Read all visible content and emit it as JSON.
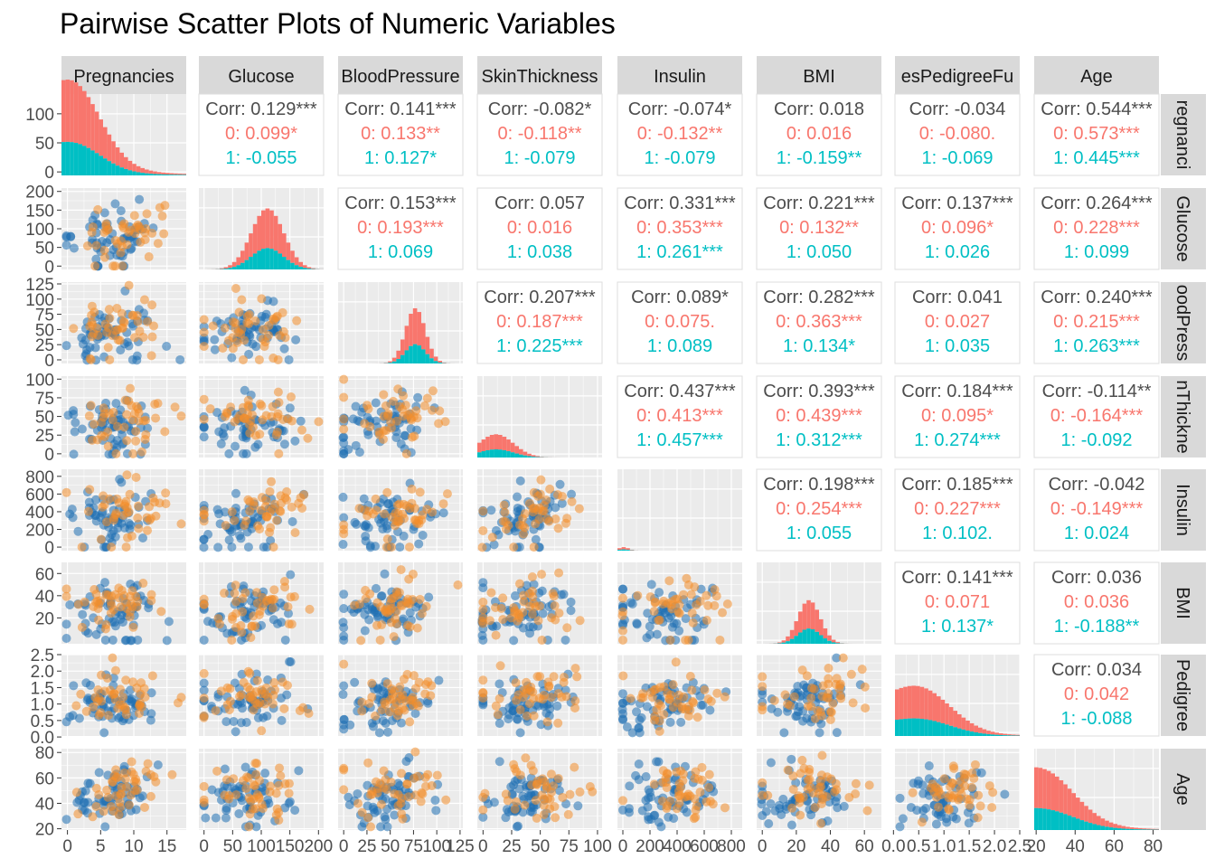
{
  "title": "Pairwise Scatter Plots of Numeric Variables",
  "chart_data": {
    "type": "scatter-matrix",
    "title": "Pairwise Scatter Plots of Numeric Variables",
    "variables": [
      "Pregnancies",
      "Glucose",
      "BloodPressure",
      "SkinThickness",
      "Insulin",
      "BMI",
      "DiabetesPedigreeFunction",
      "Age"
    ],
    "column_strip_labels": [
      "Pregnancies",
      "Glucose",
      "BloodPressure",
      "SkinThickness",
      "Insulin",
      "BMI",
      "esPedigreeFu",
      "Age"
    ],
    "row_strip_labels": [
      "regnanci",
      "Glucose",
      "oodPress",
      "nThickne",
      "Insulin",
      "BMI",
      "Pedigree",
      "Age"
    ],
    "groups": [
      {
        "name": "0",
        "hist_color": "#F8766D",
        "point_color": "#F28E2B"
      },
      {
        "name": "1",
        "hist_color": "#00BFC4",
        "point_color": "#1F6FB2"
      }
    ],
    "y_ticks": [
      [
        {
          "v": 0,
          "label": "0"
        },
        {
          "v": 50,
          "label": "50"
        },
        {
          "v": 100,
          "label": "100"
        }
      ],
      [
        {
          "v": 0,
          "label": "0"
        },
        {
          "v": 50,
          "label": "50"
        },
        {
          "v": 100,
          "label": "100"
        },
        {
          "v": 150,
          "label": "150"
        },
        {
          "v": 200,
          "label": "200"
        }
      ],
      [
        {
          "v": 0,
          "label": "0"
        },
        {
          "v": 25,
          "label": "25"
        },
        {
          "v": 50,
          "label": "50"
        },
        {
          "v": 75,
          "label": "75"
        },
        {
          "v": 100,
          "label": "100"
        },
        {
          "v": 125,
          "label": "125"
        }
      ],
      [
        {
          "v": 0,
          "label": "0"
        },
        {
          "v": 25,
          "label": "25"
        },
        {
          "v": 50,
          "label": "50"
        },
        {
          "v": 75,
          "label": "75"
        },
        {
          "v": 100,
          "label": "100"
        }
      ],
      [
        {
          "v": 0,
          "label": "0"
        },
        {
          "v": 200,
          "label": "200"
        },
        {
          "v": 400,
          "label": "400"
        },
        {
          "v": 600,
          "label": "600"
        },
        {
          "v": 800,
          "label": "800"
        }
      ],
      [
        {
          "v": 20,
          "label": "20"
        },
        {
          "v": 40,
          "label": "40"
        },
        {
          "v": 60,
          "label": "60"
        }
      ],
      [
        {
          "v": 0,
          "label": "0.0"
        },
        {
          "v": 0.5,
          "label": "0.5"
        },
        {
          "v": 1,
          "label": "1.0"
        },
        {
          "v": 1.5,
          "label": "1.5"
        },
        {
          "v": 2,
          "label": "2.0"
        },
        {
          "v": 2.5,
          "label": "2.5"
        }
      ],
      [
        {
          "v": 20,
          "label": "20"
        },
        {
          "v": 40,
          "label": "40"
        },
        {
          "v": 60,
          "label": "60"
        },
        {
          "v": 80,
          "label": "80"
        }
      ]
    ],
    "x_ticks": [
      [
        {
          "v": 0,
          "label": "0"
        },
        {
          "v": 5,
          "label": "5"
        },
        {
          "v": 10,
          "label": "10"
        },
        {
          "v": 15,
          "label": "15"
        }
      ],
      [
        {
          "v": 0,
          "label": "0"
        },
        {
          "v": 50,
          "label": "50"
        },
        {
          "v": 100,
          "label": "100"
        },
        {
          "v": 150,
          "label": "150"
        },
        {
          "v": 200,
          "label": "200"
        }
      ],
      [
        {
          "v": 0,
          "label": "0"
        },
        {
          "v": 25,
          "label": "25"
        },
        {
          "v": 50,
          "label": "50"
        },
        {
          "v": 75,
          "label": "75"
        },
        {
          "v": 100,
          "label": "100"
        },
        {
          "v": 125,
          "label": "125"
        }
      ],
      [
        {
          "v": 0,
          "label": "0"
        },
        {
          "v": 25,
          "label": "25"
        },
        {
          "v": 50,
          "label": "50"
        },
        {
          "v": 75,
          "label": "75"
        },
        {
          "v": 100,
          "label": "100"
        }
      ],
      [
        {
          "v": 0,
          "label": "0"
        },
        {
          "v": 200,
          "label": "200"
        },
        {
          "v": 400,
          "label": "400"
        },
        {
          "v": 600,
          "label": "600"
        },
        {
          "v": 800,
          "label": "800"
        }
      ],
      [
        {
          "v": 0,
          "label": "0"
        },
        {
          "v": 20,
          "label": "20"
        },
        {
          "v": 40,
          "label": "40"
        },
        {
          "v": 60,
          "label": "60"
        }
      ],
      [
        {
          "v": 0,
          "label": "0.0"
        },
        {
          "v": 0.5,
          "label": "0.5"
        },
        {
          "v": 1,
          "label": "1.0"
        },
        {
          "v": 1.5,
          "label": "1.5"
        },
        {
          "v": 2,
          "label": "2.0"
        },
        {
          "v": 2.5,
          "label": "2.5"
        }
      ],
      [
        {
          "v": 20,
          "label": "20"
        },
        {
          "v": 40,
          "label": "40"
        },
        {
          "v": 60,
          "label": "60"
        },
        {
          "v": 80,
          "label": "80"
        }
      ]
    ],
    "correlations": [
      {
        "row": 1,
        "col": 2,
        "overall": "Corr: 0.129***",
        "g0": "0: 0.099*",
        "g1": "1: -0.055"
      },
      {
        "row": 1,
        "col": 3,
        "overall": "Corr: 0.141***",
        "g0": "0: 0.133**",
        "g1": "1: 0.127*"
      },
      {
        "row": 1,
        "col": 4,
        "overall": "Corr: -0.082*",
        "g0": "0: -0.118**",
        "g1": "1: -0.079"
      },
      {
        "row": 1,
        "col": 5,
        "overall": "Corr: -0.074*",
        "g0": "0: -0.132**",
        "g1": "1: -0.079"
      },
      {
        "row": 1,
        "col": 6,
        "overall": "Corr: 0.018",
        "g0": "0: 0.016",
        "g1": "1: -0.159**"
      },
      {
        "row": 1,
        "col": 7,
        "overall": "Corr: -0.034",
        "g0": "0: -0.080.",
        "g1": "1: -0.069"
      },
      {
        "row": 1,
        "col": 8,
        "overall": "Corr: 0.544***",
        "g0": "0: 0.573***",
        "g1": "1: 0.445***"
      },
      {
        "row": 2,
        "col": 3,
        "overall": "Corr: 0.153***",
        "g0": "0: 0.193***",
        "g1": "1: 0.069"
      },
      {
        "row": 2,
        "col": 4,
        "overall": "Corr: 0.057",
        "g0": "0: 0.016",
        "g1": "1: 0.038"
      },
      {
        "row": 2,
        "col": 5,
        "overall": "Corr: 0.331***",
        "g0": "0: 0.353***",
        "g1": "1: 0.261***"
      },
      {
        "row": 2,
        "col": 6,
        "overall": "Corr: 0.221***",
        "g0": "0: 0.132**",
        "g1": "1: 0.050"
      },
      {
        "row": 2,
        "col": 7,
        "overall": "Corr: 0.137***",
        "g0": "0: 0.096*",
        "g1": "1: 0.026"
      },
      {
        "row": 2,
        "col": 8,
        "overall": "Corr: 0.264***",
        "g0": "0: 0.228***",
        "g1": "1: 0.099"
      },
      {
        "row": 3,
        "col": 4,
        "overall": "Corr: 0.207***",
        "g0": "0: 0.187***",
        "g1": "1: 0.225***"
      },
      {
        "row": 3,
        "col": 5,
        "overall": "Corr: 0.089*",
        "g0": "0: 0.075.",
        "g1": "1: 0.089"
      },
      {
        "row": 3,
        "col": 6,
        "overall": "Corr: 0.282***",
        "g0": "0: 0.363***",
        "g1": "1: 0.134*"
      },
      {
        "row": 3,
        "col": 7,
        "overall": "Corr: 0.041",
        "g0": "0: 0.027",
        "g1": "1: 0.035"
      },
      {
        "row": 3,
        "col": 8,
        "overall": "Corr: 0.240***",
        "g0": "0: 0.215***",
        "g1": "1: 0.263***"
      },
      {
        "row": 4,
        "col": 5,
        "overall": "Corr: 0.437***",
        "g0": "0: 0.413***",
        "g1": "1: 0.457***"
      },
      {
        "row": 4,
        "col": 6,
        "overall": "Corr: 0.393***",
        "g0": "0: 0.439***",
        "g1": "1: 0.312***"
      },
      {
        "row": 4,
        "col": 7,
        "overall": "Corr: 0.184***",
        "g0": "0: 0.095*",
        "g1": "1: 0.274***"
      },
      {
        "row": 4,
        "col": 8,
        "overall": "Corr: -0.114**",
        "g0": "0: -0.164***",
        "g1": "1: -0.092"
      },
      {
        "row": 5,
        "col": 6,
        "overall": "Corr: 0.198***",
        "g0": "0: 0.254***",
        "g1": "1: 0.055"
      },
      {
        "row": 5,
        "col": 7,
        "overall": "Corr: 0.185***",
        "g0": "0: 0.227***",
        "g1": "1: 0.102."
      },
      {
        "row": 5,
        "col": 8,
        "overall": "Corr: -0.042",
        "g0": "0: -0.149***",
        "g1": "1: 0.024"
      },
      {
        "row": 6,
        "col": 7,
        "overall": "Corr: 0.141***",
        "g0": "0: 0.071",
        "g1": "1: 0.137*"
      },
      {
        "row": 6,
        "col": 8,
        "overall": "Corr: 0.036",
        "g0": "0: 0.036",
        "g1": "1: -0.188**"
      },
      {
        "row": 7,
        "col": 8,
        "overall": "Corr: 0.034",
        "g0": "0: 0.042",
        "g1": "1: -0.088"
      }
    ],
    "colors": {
      "panel_bg": "#EBEBEB",
      "grid": "#FFFFFF",
      "strip_bg": "#D9D9D9",
      "corr_overall": "#4D4D4D",
      "group0_text": "#F8766D",
      "group1_text": "#00BFC4"
    }
  }
}
